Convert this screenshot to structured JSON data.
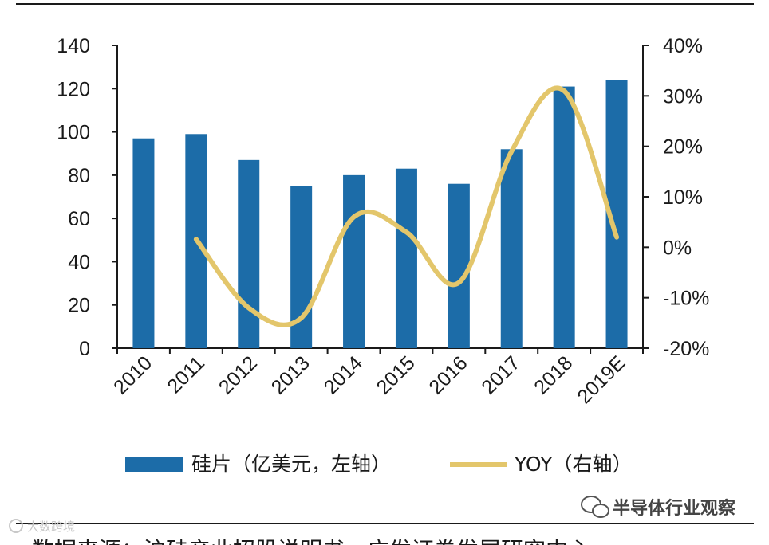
{
  "chart_data": {
    "type": "bar+line",
    "categories": [
      "2010",
      "2011",
      "2012",
      "2013",
      "2014",
      "2015",
      "2016",
      "2017",
      "2018",
      "2019E"
    ],
    "series": [
      {
        "name": "硅片（亿美元，左轴）",
        "type": "bar",
        "axis": "left",
        "color": "#1c6ca8",
        "values": [
          97,
          99,
          87,
          75,
          80,
          83,
          76,
          92,
          121,
          124
        ]
      },
      {
        "name": "YOY（右轴）",
        "type": "line",
        "axis": "right",
        "color": "#e3c66b",
        "smooth": true,
        "values": [
          null,
          0.016,
          -0.12,
          -0.14,
          0.06,
          0.03,
          -0.07,
          0.19,
          0.31,
          0.02
        ]
      }
    ],
    "y_left": {
      "range": [
        0,
        140
      ],
      "ticks": [
        "0",
        "20",
        "40",
        "60",
        "80",
        "100",
        "120",
        "140"
      ]
    },
    "y_right": {
      "range": [
        -0.2,
        0.4
      ],
      "ticks": [
        "-20%",
        "-10%",
        "0%",
        "10%",
        "20%",
        "30%",
        "40%"
      ]
    },
    "grid": false,
    "legend_position": "bottom"
  },
  "watermark": "半导体行业观察",
  "watermark_logo_text": "大数跨境",
  "source_line": "数据来源：沪硅产业招股说明书，广发证券发展研究中心"
}
